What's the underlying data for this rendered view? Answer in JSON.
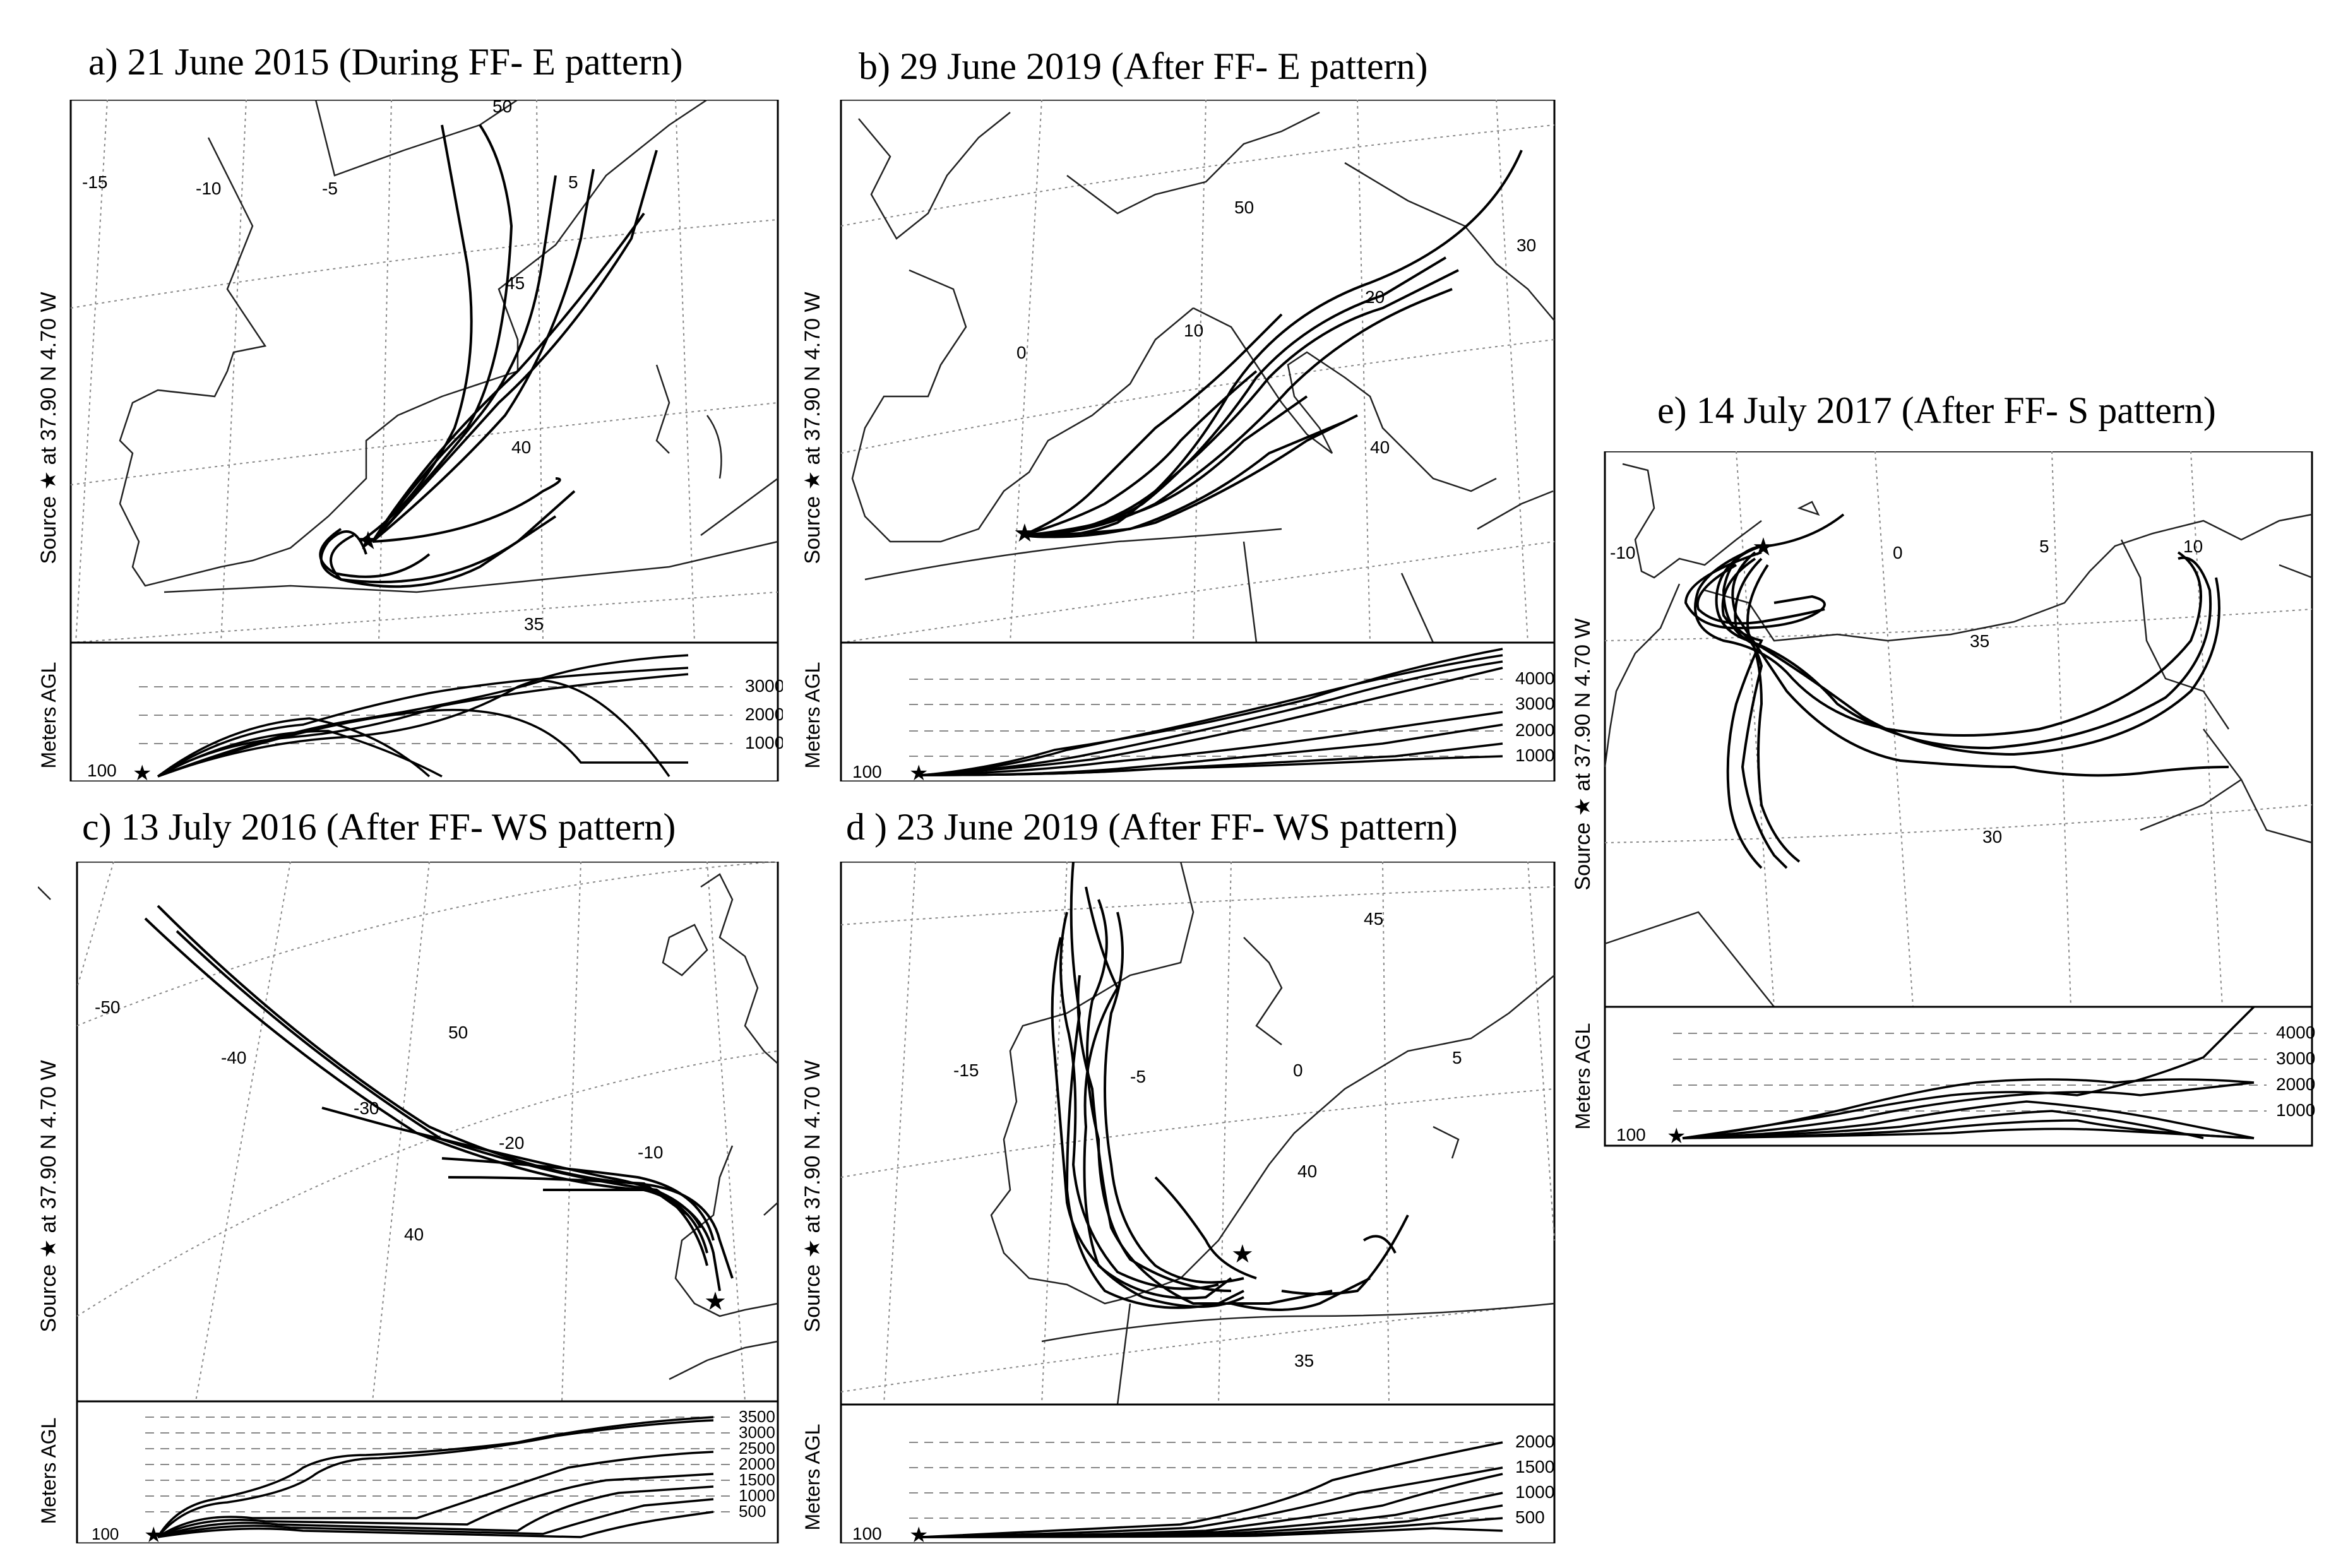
{
  "colors": {
    "ink": "#000000",
    "grid": "#777777",
    "coast": "#333333",
    "paper": "#ffffff"
  },
  "source_label": "Source ★ at 37.90 N 4.70 W",
  "source_parts": {
    "source": "Source",
    "star": "★",
    "at": "at",
    "lat": "37.90 N",
    "lon": "4.70 W"
  },
  "height_axis_label": "Meters AGL",
  "start_height": "100",
  "panels": [
    {
      "id": "a",
      "title": "a) 21 June 2015 (During FF- E pattern)",
      "grid_labels": [
        "50",
        "-15",
        "-10",
        "-5",
        "5",
        "45",
        "40",
        "35"
      ],
      "height_ticks": [
        "3000",
        "2000",
        "1000"
      ]
    },
    {
      "id": "b",
      "title": "b) 29 June 2019 (After FF- E pattern)",
      "grid_labels": [
        "50",
        "30",
        "20",
        "10",
        "0",
        "40"
      ],
      "height_ticks": [
        "4000",
        "3000",
        "2000",
        "1000"
      ]
    },
    {
      "id": "c",
      "title": "c) 13 July 2016 (After FF- WS pattern)",
      "grid_labels": [
        "-50",
        "-40",
        "50",
        "-30",
        "-20",
        "-10",
        "40"
      ],
      "height_ticks": [
        "3500",
        "3000",
        "2500",
        "2000",
        "1500",
        "1000",
        "500"
      ]
    },
    {
      "id": "d",
      "title": "d ) 23 June 2019 (After FF- WS pattern)",
      "grid_labels": [
        "45",
        "-15",
        "-5",
        "0",
        "5",
        "40",
        "35"
      ],
      "height_ticks": [
        "2000",
        "1500",
        "1000",
        "500"
      ]
    },
    {
      "id": "e",
      "title": "e)  14 July 2017 (After FF- S pattern)",
      "grid_labels": [
        "-10",
        "10",
        "5",
        "0",
        "35",
        "30"
      ],
      "height_ticks": [
        "4000",
        "3000",
        "2000",
        "1000"
      ]
    }
  ]
}
